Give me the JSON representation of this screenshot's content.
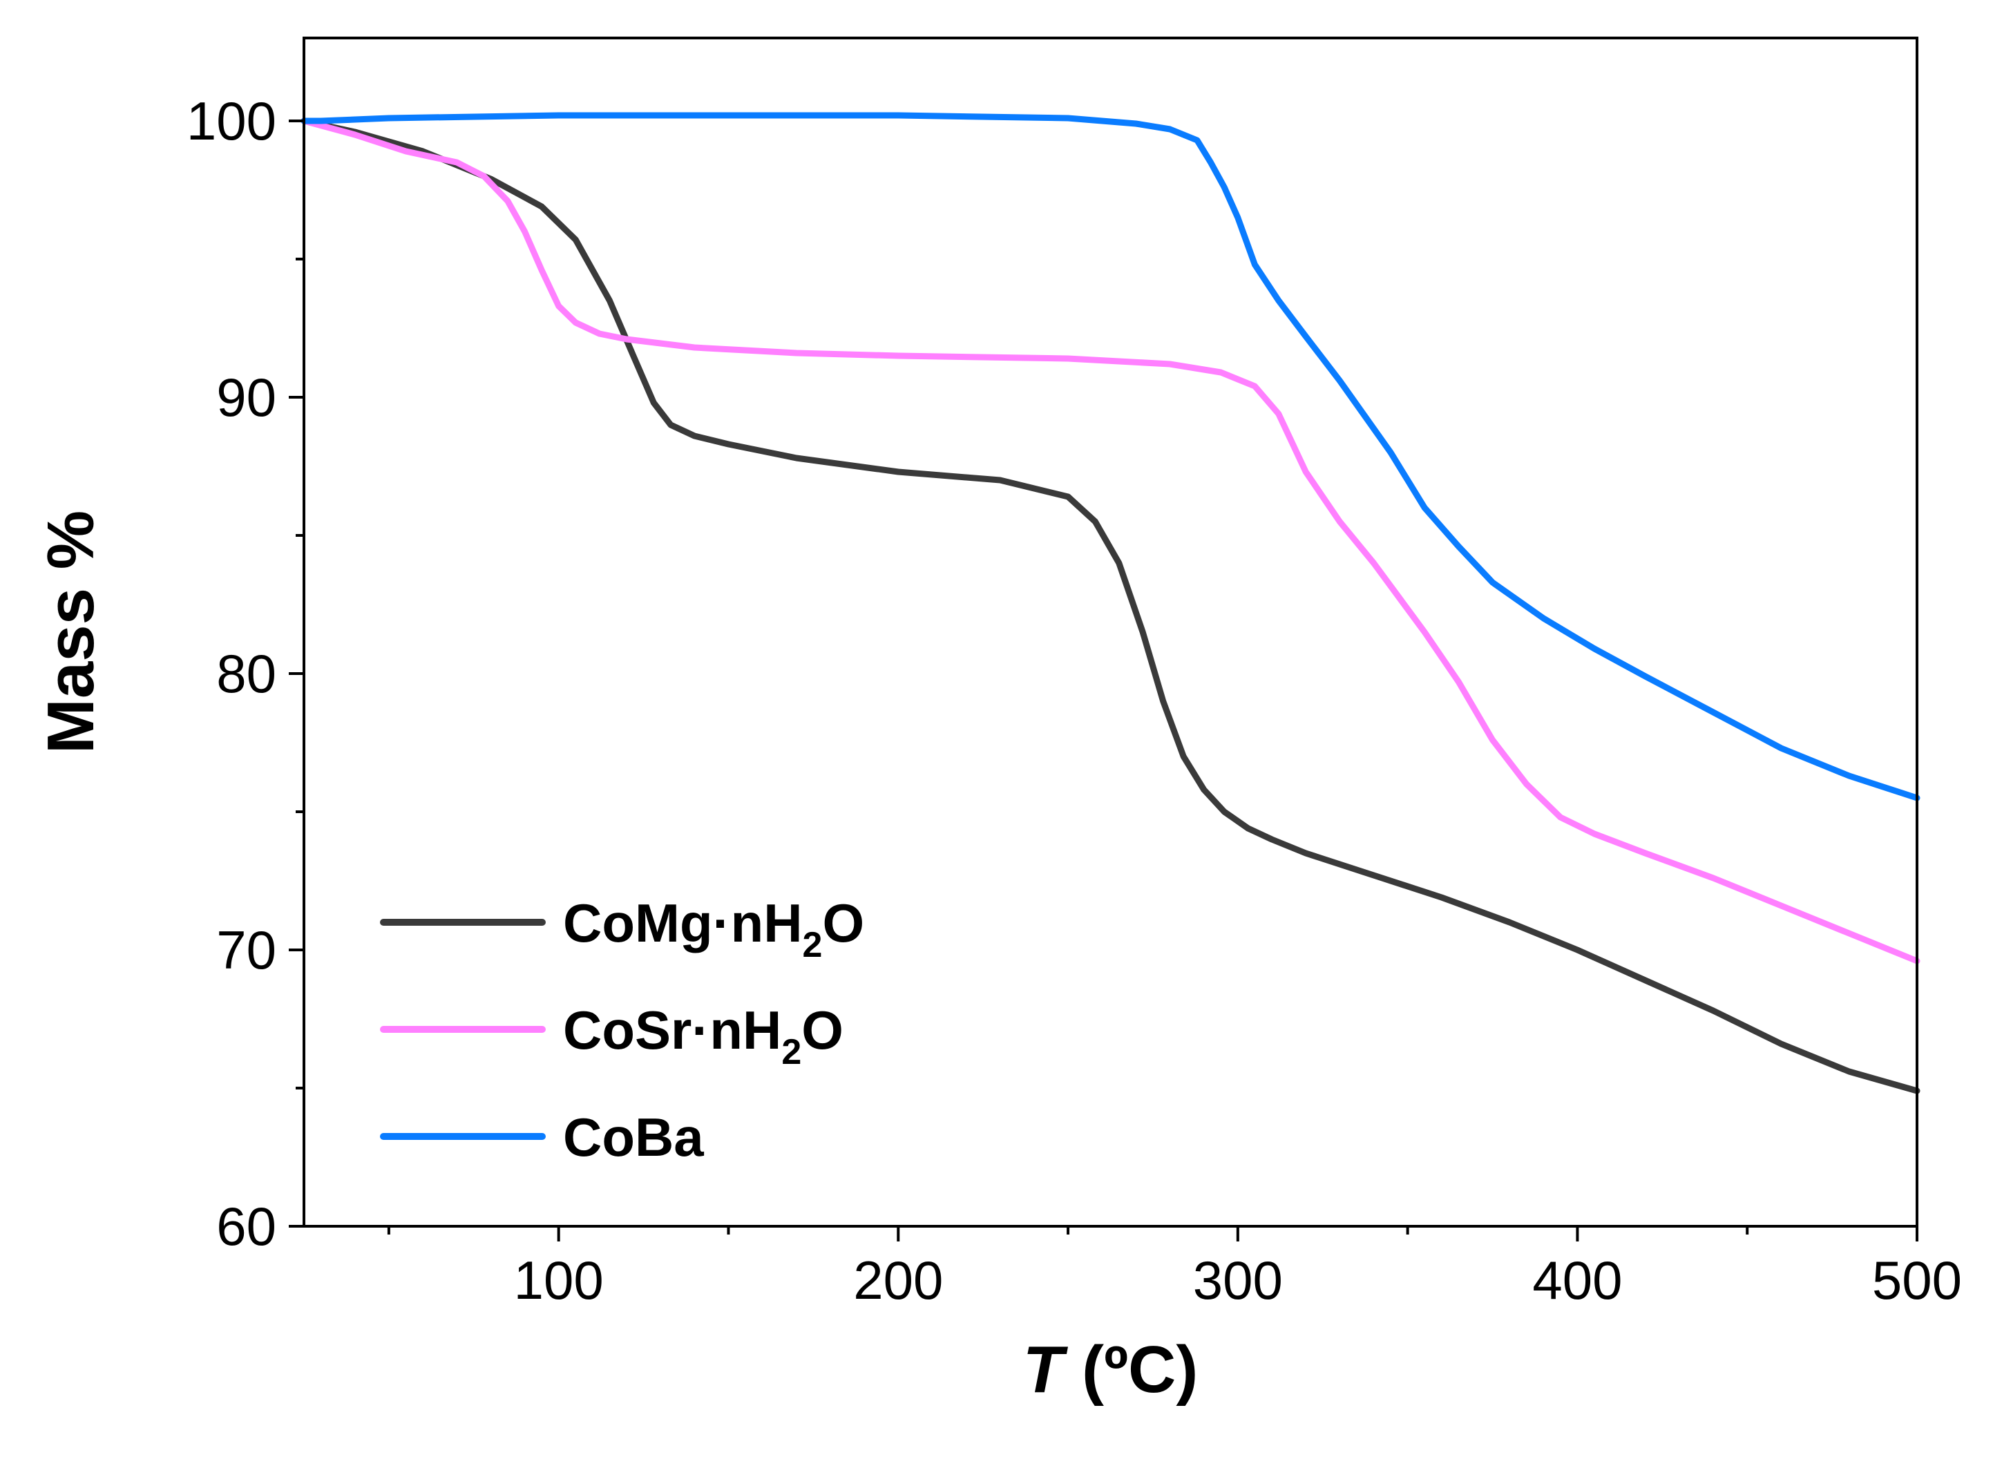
{
  "chart_data": {
    "type": "line",
    "xlabel_var": "T",
    "xlabel_unit": " (ºC)",
    "ylabel": "Mass %",
    "xlim": [
      25,
      500
    ],
    "ylim": [
      60,
      103
    ],
    "xticks": [
      100,
      200,
      300,
      400,
      500
    ],
    "xminor": [
      50,
      150,
      250,
      350,
      450
    ],
    "yticks": [
      60,
      70,
      80,
      90,
      100
    ],
    "yminor": [
      65,
      75,
      85,
      95
    ],
    "grid": false,
    "legend_position": "bottom-left",
    "series": [
      {
        "name": "CoMg·nH2O",
        "label_main": "CoMg·nH",
        "label_sub": "2",
        "label_end": "O",
        "color": "#3a3a3a",
        "x": [
          25,
          40,
          60,
          80,
          95,
          105,
          115,
          122,
          128,
          133,
          140,
          150,
          170,
          200,
          230,
          250,
          258,
          265,
          272,
          278,
          284,
          290,
          296,
          303,
          310,
          320,
          340,
          360,
          380,
          400,
          420,
          440,
          460,
          480,
          500
        ],
        "y": [
          100,
          99.6,
          98.9,
          97.9,
          96.9,
          95.7,
          93.5,
          91.5,
          89.8,
          89.0,
          88.6,
          88.3,
          87.8,
          87.3,
          87.0,
          86.4,
          85.5,
          84.0,
          81.5,
          79.0,
          77.0,
          75.8,
          75.0,
          74.4,
          74.0,
          73.5,
          72.7,
          71.9,
          71.0,
          70.0,
          68.9,
          67.8,
          66.6,
          65.6,
          64.9
        ]
      },
      {
        "name": "CoSr·nH2O",
        "label_main": "CoSr·nH",
        "label_sub": "2",
        "label_end": "O",
        "color": "#ff80ff",
        "x": [
          25,
          40,
          55,
          70,
          78,
          85,
          90,
          95,
          100,
          105,
          112,
          120,
          140,
          170,
          200,
          250,
          280,
          295,
          305,
          312,
          320,
          330,
          340,
          355,
          365,
          375,
          385,
          395,
          405,
          420,
          440,
          460,
          480,
          500
        ],
        "y": [
          100,
          99.5,
          98.9,
          98.5,
          98.0,
          97.1,
          96.0,
          94.6,
          93.3,
          92.7,
          92.3,
          92.1,
          91.8,
          91.6,
          91.5,
          91.4,
          91.2,
          90.9,
          90.4,
          89.4,
          87.3,
          85.5,
          84.0,
          81.5,
          79.7,
          77.6,
          76.0,
          74.8,
          74.2,
          73.5,
          72.6,
          71.6,
          70.6,
          69.6
        ]
      },
      {
        "name": "CoBa",
        "label_main": "CoBa",
        "label_sub": "",
        "label_end": "",
        "color": "#0a7cff",
        "x": [
          25,
          30,
          50,
          100,
          150,
          200,
          250,
          270,
          280,
          288,
          292,
          296,
          300,
          305,
          312,
          320,
          330,
          345,
          355,
          365,
          375,
          390,
          405,
          420,
          440,
          460,
          480,
          500
        ],
        "y": [
          100,
          100.0,
          100.1,
          100.2,
          100.2,
          100.2,
          100.1,
          99.9,
          99.7,
          99.3,
          98.5,
          97.6,
          96.5,
          94.8,
          93.5,
          92.2,
          90.6,
          88.0,
          86.0,
          84.6,
          83.3,
          82.0,
          80.9,
          79.9,
          78.6,
          77.3,
          76.3,
          75.5
        ]
      }
    ]
  }
}
